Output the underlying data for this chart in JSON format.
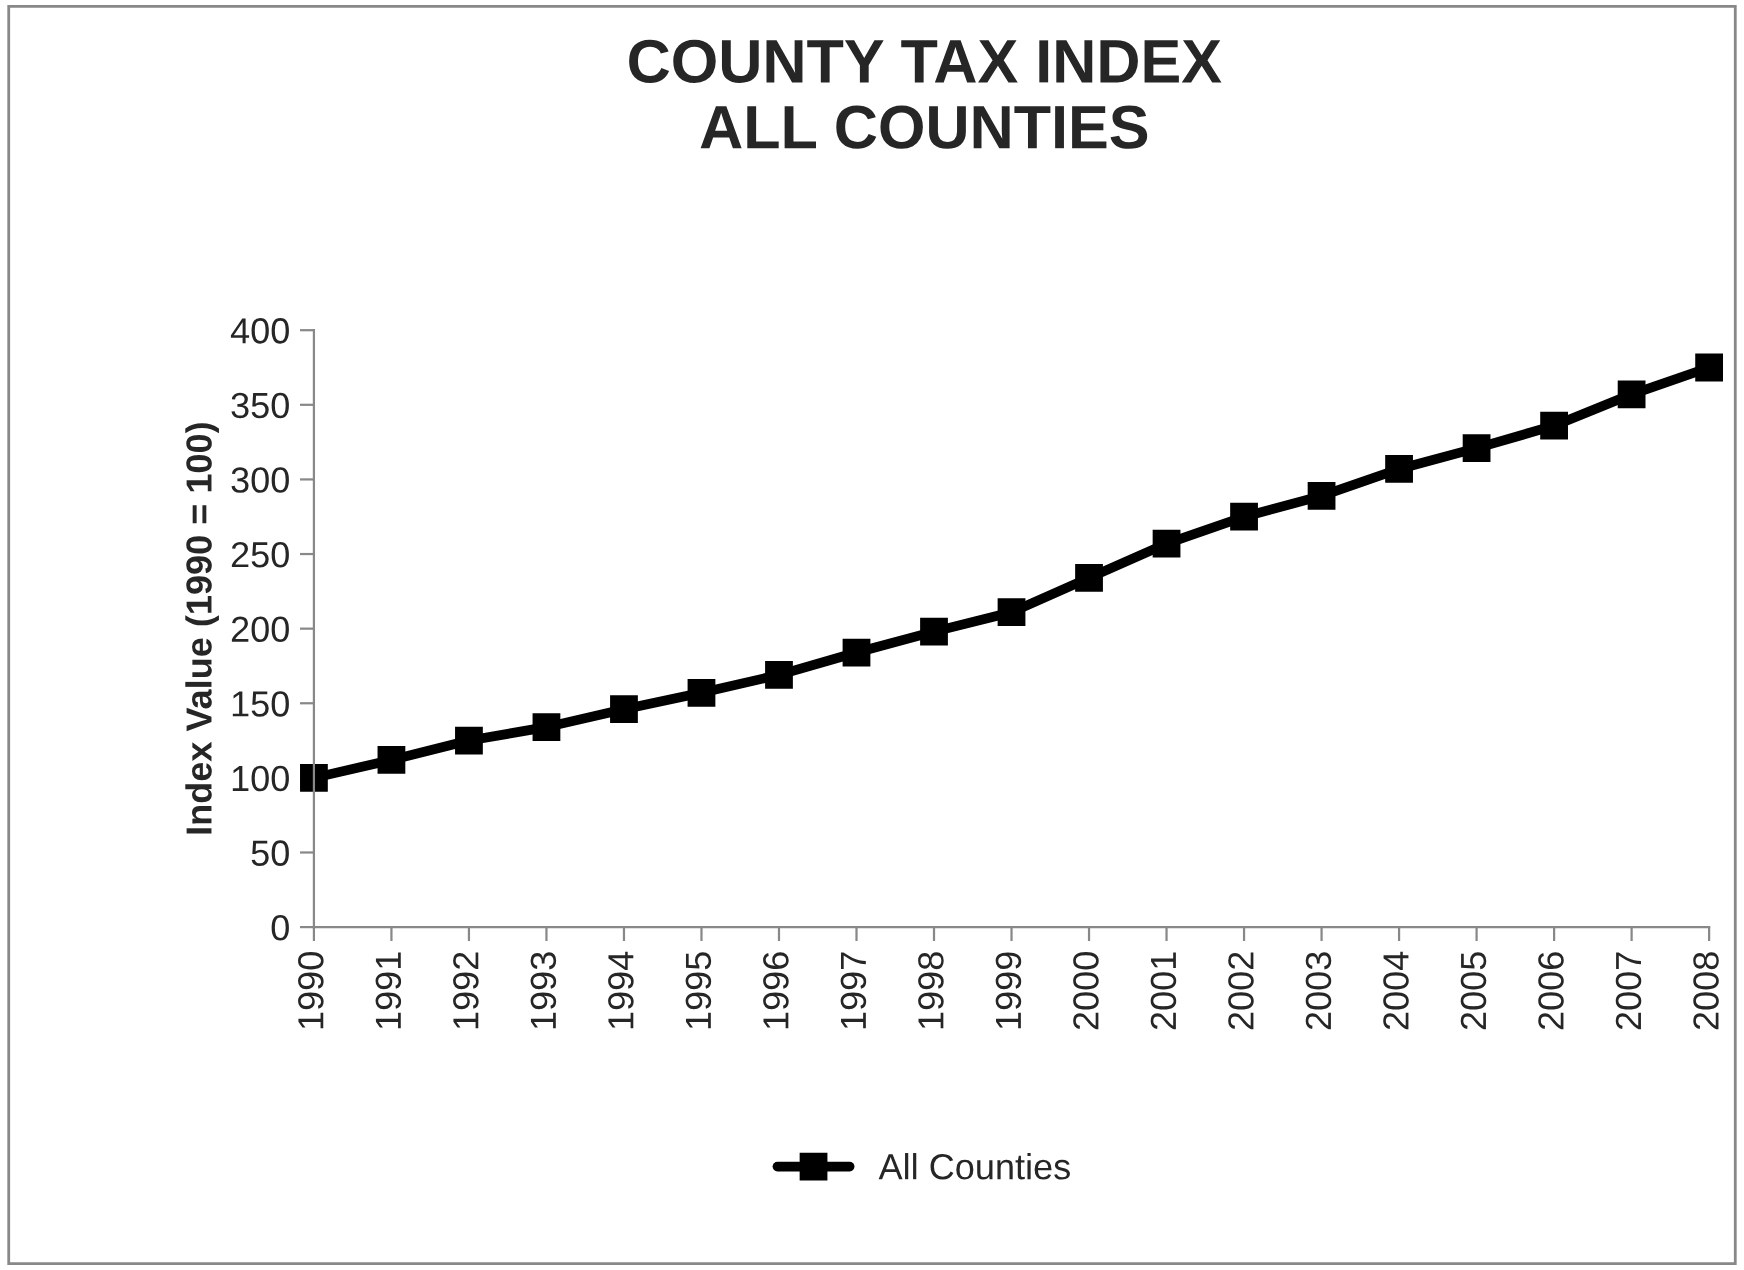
{
  "chart_data": {
    "type": "line",
    "title": "COUNTY TAX INDEX\nALL COUNTIES",
    "ylabel": "Index Value (1990 = 100)",
    "categories": [
      "1990",
      "1991",
      "1992",
      "1993",
      "1994",
      "1995",
      "1996",
      "1997",
      "1998",
      "1999",
      "2000",
      "2001",
      "2002",
      "2003",
      "2004",
      "2005",
      "2006",
      "2007",
      "2008"
    ],
    "series": [
      {
        "name": "All Counties",
        "color": "#000000",
        "values": [
          100,
          112,
          125,
          134,
          146,
          157,
          169,
          184,
          198,
          211,
          234,
          257,
          275,
          289,
          307,
          321,
          336,
          357,
          375
        ]
      }
    ],
    "ylim": [
      0,
      400
    ],
    "yticks": [
      0,
      50,
      100,
      150,
      200,
      250,
      300,
      350,
      400
    ],
    "grid": false,
    "legend": "bottom",
    "marker": "square",
    "line_style": "solid"
  }
}
